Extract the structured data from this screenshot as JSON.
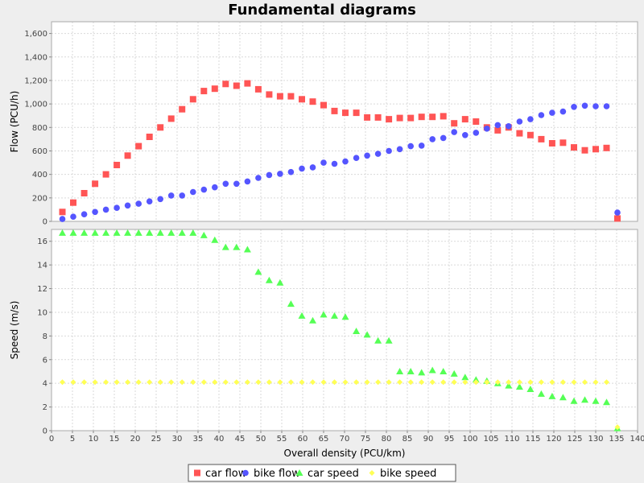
{
  "chart_data": {
    "type": "scatter",
    "title": "Fundamental diagrams",
    "xlabel": "Overall density (PCU/km)",
    "xlim": [
      0,
      140
    ],
    "x_ticks": [
      0,
      5,
      10,
      15,
      20,
      25,
      30,
      35,
      40,
      45,
      50,
      55,
      60,
      65,
      70,
      75,
      80,
      85,
      90,
      95,
      100,
      105,
      110,
      115,
      120,
      125,
      130,
      135,
      140
    ],
    "grid": true,
    "legend": "bottom",
    "panels": [
      {
        "ylabel": "Flow (PCU/h)",
        "ylim": [
          0,
          1700
        ],
        "y_ticks": [
          0,
          200,
          400,
          600,
          800,
          1000,
          1200,
          1400,
          1600
        ],
        "y_tick_labels": [
          "0",
          "200",
          "400",
          "600",
          "800",
          "1,000",
          "1,200",
          "1,400",
          "1,600"
        ],
        "series": [
          {
            "name": "car flow",
            "marker": "square",
            "color": "#ff5555",
            "x": [
              2.6,
              5.2,
              7.8,
              10.4,
              13.0,
              15.6,
              18.2,
              20.8,
              23.4,
              26.0,
              28.6,
              31.2,
              33.8,
              36.4,
              39.0,
              41.6,
              44.2,
              46.8,
              49.4,
              52.0,
              54.6,
              57.2,
              59.8,
              62.4,
              65.0,
              67.6,
              70.2,
              72.8,
              75.4,
              78.0,
              80.6,
              83.2,
              85.8,
              88.4,
              91.0,
              93.6,
              96.2,
              98.8,
              101.4,
              104.0,
              106.6,
              109.2,
              111.8,
              114.4,
              117.0,
              119.6,
              122.2,
              124.8,
              127.4,
              130.0,
              132.6,
              135.2
            ],
            "y": [
              80,
              160,
              240,
              320,
              400,
              480,
              560,
              640,
              720,
              800,
              875,
              955,
              1040,
              1110,
              1130,
              1170,
              1155,
              1175,
              1125,
              1080,
              1065,
              1065,
              1040,
              1020,
              990,
              940,
              925,
              925,
              885,
              885,
              870,
              880,
              880,
              890,
              890,
              895,
              835,
              870,
              850,
              800,
              775,
              800,
              750,
              735,
              700,
              665,
              670,
              630,
              605,
              615,
              625,
              25
            ]
          },
          {
            "name": "bike flow",
            "marker": "circle",
            "color": "#5555ff",
            "x": [
              2.6,
              5.2,
              7.8,
              10.4,
              13.0,
              15.6,
              18.2,
              20.8,
              23.4,
              26.0,
              28.6,
              31.2,
              33.8,
              36.4,
              39.0,
              41.6,
              44.2,
              46.8,
              49.4,
              52.0,
              54.6,
              57.2,
              59.8,
              62.4,
              65.0,
              67.6,
              70.2,
              72.8,
              75.4,
              78.0,
              80.6,
              83.2,
              85.8,
              88.4,
              91.0,
              93.6,
              96.2,
              98.8,
              101.4,
              104.0,
              106.6,
              109.2,
              111.8,
              114.4,
              117.0,
              119.6,
              122.2,
              124.8,
              127.4,
              130.0,
              132.6,
              135.2
            ],
            "y": [
              20,
              40,
              60,
              80,
              100,
              115,
              135,
              150,
              170,
              190,
              220,
              220,
              250,
              270,
              290,
              320,
              320,
              340,
              370,
              395,
              405,
              420,
              450,
              460,
              500,
              490,
              510,
              540,
              560,
              575,
              600,
              615,
              640,
              645,
              700,
              710,
              760,
              735,
              755,
              790,
              820,
              810,
              850,
              870,
              905,
              925,
              935,
              975,
              985,
              980,
              980,
              75
            ]
          }
        ]
      },
      {
        "ylabel": "Speed (m/s)",
        "ylim": [
          0,
          17
        ],
        "y_ticks": [
          0,
          2,
          4,
          6,
          8,
          10,
          12,
          14,
          16
        ],
        "y_tick_labels": [
          "0",
          "2",
          "4",
          "6",
          "8",
          "10",
          "12",
          "14",
          "16"
        ],
        "series": [
          {
            "name": "car speed",
            "marker": "triangle",
            "color": "#55ff55",
            "x": [
              2.6,
              5.2,
              7.8,
              10.4,
              13.0,
              15.6,
              18.2,
              20.8,
              23.4,
              26.0,
              28.6,
              31.2,
              33.8,
              36.4,
              39.0,
              41.6,
              44.2,
              46.8,
              49.4,
              52.0,
              54.6,
              57.2,
              59.8,
              62.4,
              65.0,
              67.6,
              70.2,
              72.8,
              75.4,
              78.0,
              80.6,
              83.2,
              85.8,
              88.4,
              91.0,
              93.6,
              96.2,
              98.8,
              101.4,
              104.0,
              106.6,
              109.2,
              111.8,
              114.4,
              117.0,
              119.6,
              122.2,
              124.8,
              127.4,
              130.0,
              132.6,
              135.2
            ],
            "y": [
              16.7,
              16.7,
              16.7,
              16.7,
              16.7,
              16.7,
              16.7,
              16.7,
              16.7,
              16.7,
              16.7,
              16.7,
              16.7,
              16.5,
              16.1,
              15.5,
              15.5,
              15.3,
              13.4,
              12.7,
              12.5,
              10.7,
              9.7,
              9.3,
              9.8,
              9.7,
              9.6,
              8.4,
              8.1,
              7.6,
              7.6,
              5.0,
              5.0,
              4.9,
              5.1,
              5.0,
              4.8,
              4.5,
              4.3,
              4.2,
              4.0,
              3.8,
              3.7,
              3.5,
              3.1,
              2.9,
              2.8,
              2.5,
              2.6,
              2.5,
              2.4,
              0.2
            ]
          },
          {
            "name": "bike speed",
            "marker": "diamond",
            "color": "#ffff55",
            "x": [
              2.6,
              5.2,
              7.8,
              10.4,
              13.0,
              15.6,
              18.2,
              20.8,
              23.4,
              26.0,
              28.6,
              31.2,
              33.8,
              36.4,
              39.0,
              41.6,
              44.2,
              46.8,
              49.4,
              52.0,
              54.6,
              57.2,
              59.8,
              62.4,
              65.0,
              67.6,
              70.2,
              72.8,
              75.4,
              78.0,
              80.6,
              83.2,
              85.8,
              88.4,
              91.0,
              93.6,
              96.2,
              98.8,
              101.4,
              104.0,
              106.6,
              109.2,
              111.8,
              114.4,
              117.0,
              119.6,
              122.2,
              124.8,
              127.4,
              130.0,
              132.6,
              135.2
            ],
            "y": [
              4.1,
              4.1,
              4.1,
              4.1,
              4.1,
              4.1,
              4.1,
              4.1,
              4.1,
              4.1,
              4.1,
              4.1,
              4.1,
              4.1,
              4.1,
              4.1,
              4.1,
              4.1,
              4.1,
              4.1,
              4.1,
              4.1,
              4.1,
              4.1,
              4.1,
              4.1,
              4.1,
              4.1,
              4.1,
              4.1,
              4.1,
              4.1,
              4.1,
              4.1,
              4.1,
              4.1,
              4.1,
              4.1,
              4.1,
              4.1,
              4.1,
              4.1,
              4.1,
              4.1,
              4.1,
              4.1,
              4.1,
              4.1,
              4.1,
              4.1,
              4.1,
              0.3
            ]
          }
        ]
      }
    ]
  }
}
